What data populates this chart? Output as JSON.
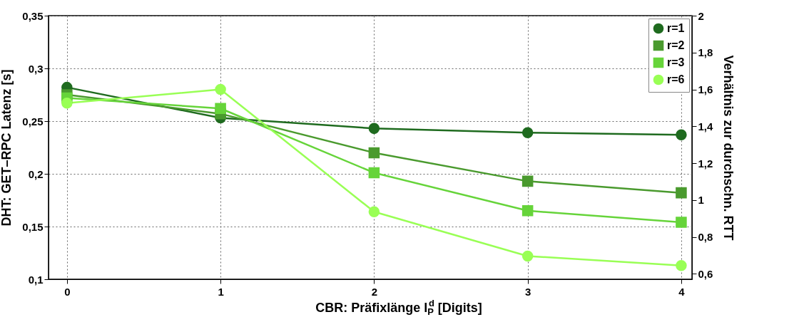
{
  "chart_data": {
    "type": "line",
    "xlabel": "CBR: Präfixlänge l$_{P}$$^{d}$ [Digits]",
    "ylabel": "DHT: GET–RPC Latenz [s]",
    "y2label": "Verhältnis zur durchschn. RTT",
    "x": [
      0,
      1,
      2,
      3,
      4
    ],
    "xlim": [
      -0.12,
      4.07
    ],
    "xticks": [
      0,
      1,
      2,
      3,
      4
    ],
    "ylim": [
      0.1,
      0.35
    ],
    "yticks": [
      {
        "value": 0.1,
        "label": "0,1"
      },
      {
        "value": 0.15,
        "label": "0,15"
      },
      {
        "value": 0.2,
        "label": "0,2"
      },
      {
        "value": 0.25,
        "label": "0,25"
      },
      {
        "value": 0.3,
        "label": "0,3"
      },
      {
        "value": 0.35,
        "label": "0,35"
      }
    ],
    "y2lim": [
      0.571,
      2
    ],
    "y2ticks": [
      {
        "value": 0.6,
        "label": "0,6"
      },
      {
        "value": 0.8,
        "label": "0,8"
      },
      1,
      {
        "value": 1.2,
        "label": "1,2"
      },
      {
        "value": 1.4,
        "label": "1,4"
      },
      {
        "value": 1.6,
        "label": "1,6"
      },
      {
        "value": 1.8,
        "label": "1,8"
      },
      2
    ],
    "grid": true,
    "legend": "top right",
    "line_style": "solid",
    "series": [
      {
        "name": "r=1",
        "color": "#1f6b1f",
        "marker": "circle",
        "values": [
          0.282,
          0.253,
          0.243,
          0.239,
          0.237
        ]
      },
      {
        "name": "r=2",
        "color": "#4a9a2e",
        "marker": "square",
        "values": [
          0.275,
          0.257,
          0.22,
          0.193,
          0.182
        ]
      },
      {
        "name": "r=3",
        "color": "#66d43a",
        "marker": "square",
        "values": [
          0.272,
          0.262,
          0.201,
          0.165,
          0.154
        ]
      },
      {
        "name": "r=6",
        "color": "#99ff55",
        "marker": "circle",
        "values": [
          0.267,
          0.28,
          0.164,
          0.122,
          0.113
        ]
      }
    ]
  }
}
